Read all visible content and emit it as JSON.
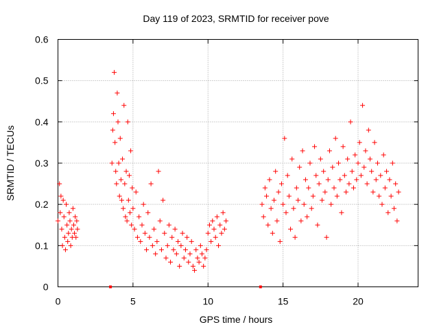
{
  "chart_data": {
    "type": "scatter",
    "title": "Day 119 of 2023, SRMTID for receiver pove",
    "xlabel": "GPS time / hours",
    "ylabel": "SRMTID / TECUs",
    "xlim": [
      0,
      24
    ],
    "ylim": [
      0,
      0.6
    ],
    "xticks": [
      0,
      5,
      10,
      15,
      20
    ],
    "xtick_labels": [
      "0",
      "5",
      "10",
      "15",
      "20"
    ],
    "yticks": [
      0,
      0.1,
      0.2,
      0.3,
      0.4,
      0.5,
      0.6
    ],
    "ytick_labels": [
      "0",
      "0.1",
      "0.2",
      "0.3",
      "0.4",
      "0.5",
      "0.6"
    ],
    "grid": true,
    "marker": "+",
    "color": "#ff0000",
    "series": [
      {
        "name": "SRMTID",
        "x": [
          0.0,
          0.1,
          0.15,
          0.2,
          0.25,
          0.3,
          0.35,
          0.4,
          0.45,
          0.5,
          0.55,
          0.6,
          0.65,
          0.7,
          0.75,
          0.8,
          0.85,
          0.9,
          0.95,
          1.0,
          1.05,
          1.1,
          1.15,
          1.2,
          1.25,
          1.3,
          3.6,
          3.65,
          3.7,
          3.75,
          3.8,
          3.85,
          3.9,
          3.95,
          4.0,
          4.05,
          4.1,
          4.15,
          4.2,
          4.25,
          4.3,
          4.35,
          4.4,
          4.45,
          4.5,
          4.55,
          4.6,
          4.65,
          4.7,
          4.75,
          4.8,
          4.85,
          4.9,
          4.95,
          5.0,
          5.1,
          5.2,
          5.3,
          5.4,
          5.5,
          5.6,
          5.7,
          5.8,
          5.9,
          6.0,
          6.1,
          6.2,
          6.3,
          6.4,
          6.5,
          6.6,
          6.7,
          6.8,
          6.9,
          7.0,
          7.1,
          7.2,
          7.3,
          7.4,
          7.5,
          7.6,
          7.7,
          7.8,
          7.9,
          8.0,
          8.1,
          8.2,
          8.3,
          8.4,
          8.5,
          8.6,
          8.7,
          8.8,
          8.9,
          9.0,
          9.1,
          9.2,
          9.3,
          9.4,
          9.5,
          9.6,
          9.7,
          9.8,
          9.9,
          10.0,
          10.1,
          10.2,
          10.3,
          10.4,
          10.5,
          10.6,
          10.7,
          10.8,
          10.9,
          11.0,
          11.1,
          11.2,
          13.6,
          13.7,
          13.8,
          13.9,
          14.0,
          14.1,
          14.2,
          14.3,
          14.4,
          14.5,
          14.6,
          14.7,
          14.8,
          14.9,
          15.0,
          15.1,
          15.2,
          15.3,
          15.4,
          15.5,
          15.6,
          15.7,
          15.8,
          15.9,
          16.0,
          16.1,
          16.2,
          16.3,
          16.4,
          16.5,
          16.6,
          16.7,
          16.8,
          16.9,
          17.0,
          17.1,
          17.2,
          17.3,
          17.4,
          17.5,
          17.6,
          17.7,
          17.8,
          17.9,
          18.0,
          18.1,
          18.2,
          18.3,
          18.4,
          18.5,
          18.6,
          18.7,
          18.8,
          18.9,
          19.0,
          19.1,
          19.2,
          19.3,
          19.4,
          19.5,
          19.6,
          19.7,
          19.8,
          19.9,
          20.0,
          20.1,
          20.2,
          20.3,
          20.4,
          20.5,
          20.6,
          20.7,
          20.8,
          20.9,
          21.0,
          21.1,
          21.2,
          21.3,
          21.4,
          21.5,
          21.6,
          21.7,
          21.8,
          21.9,
          22.0,
          22.1,
          22.2,
          22.3,
          22.4,
          22.5,
          22.6,
          22.7
        ],
        "y": [
          0.16,
          0.25,
          0.18,
          0.22,
          0.14,
          0.1,
          0.21,
          0.17,
          0.12,
          0.09,
          0.2,
          0.15,
          0.11,
          0.13,
          0.18,
          0.16,
          0.1,
          0.14,
          0.12,
          0.19,
          0.15,
          0.13,
          0.17,
          0.12,
          0.16,
          0.14,
          0.3,
          0.38,
          0.42,
          0.52,
          0.35,
          0.28,
          0.25,
          0.47,
          0.4,
          0.3,
          0.22,
          0.36,
          0.26,
          0.21,
          0.31,
          0.19,
          0.44,
          0.25,
          0.17,
          0.28,
          0.16,
          0.4,
          0.21,
          0.27,
          0.18,
          0.33,
          0.15,
          0.24,
          0.19,
          0.14,
          0.23,
          0.12,
          0.17,
          0.11,
          0.15,
          0.2,
          0.13,
          0.09,
          0.18,
          0.12,
          0.25,
          0.1,
          0.14,
          0.08,
          0.11,
          0.28,
          0.16,
          0.09,
          0.21,
          0.13,
          0.07,
          0.1,
          0.15,
          0.06,
          0.12,
          0.09,
          0.14,
          0.08,
          0.11,
          0.05,
          0.1,
          0.13,
          0.07,
          0.09,
          0.12,
          0.06,
          0.08,
          0.11,
          0.05,
          0.04,
          0.09,
          0.07,
          0.06,
          0.1,
          0.08,
          0.05,
          0.07,
          0.09,
          0.13,
          0.15,
          0.11,
          0.16,
          0.14,
          0.12,
          0.17,
          0.1,
          0.15,
          0.13,
          0.18,
          0.14,
          0.16,
          0.2,
          0.17,
          0.24,
          0.22,
          0.15,
          0.26,
          0.19,
          0.13,
          0.21,
          0.28,
          0.16,
          0.23,
          0.11,
          0.25,
          0.2,
          0.36,
          0.18,
          0.27,
          0.22,
          0.14,
          0.31,
          0.19,
          0.12,
          0.24,
          0.21,
          0.29,
          0.16,
          0.33,
          0.2,
          0.26,
          0.17,
          0.24,
          0.3,
          0.19,
          0.22,
          0.34,
          0.27,
          0.15,
          0.25,
          0.31,
          0.21,
          0.28,
          0.23,
          0.12,
          0.26,
          0.33,
          0.2,
          0.29,
          0.24,
          0.36,
          0.22,
          0.3,
          0.26,
          0.18,
          0.34,
          0.27,
          0.23,
          0.31,
          0.25,
          0.4,
          0.28,
          0.24,
          0.32,
          0.26,
          0.3,
          0.35,
          0.27,
          0.44,
          0.29,
          0.33,
          0.25,
          0.38,
          0.31,
          0.28,
          0.23,
          0.35,
          0.26,
          0.3,
          0.22,
          0.27,
          0.2,
          0.32,
          0.24,
          0.28,
          0.18,
          0.26,
          0.22,
          0.3,
          0.19,
          0.25,
          0.16,
          0.23
        ]
      }
    ],
    "axis_markers_x": [
      3.5,
      13.5
    ]
  }
}
